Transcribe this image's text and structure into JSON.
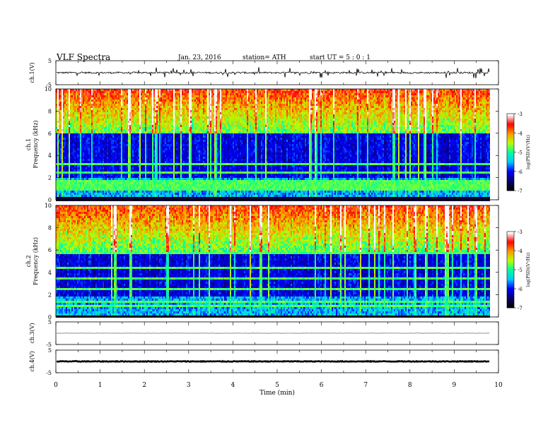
{
  "header": {
    "title": "VLF  Spectra",
    "date": "Jan. 23, 2016",
    "station": "station= ATH",
    "start": "start  UT  =   5  : 0  : 1"
  },
  "chart_data": {
    "type": "heatmap",
    "xlabel": "Time  (min)",
    "xlim": [
      0,
      10
    ],
    "x_ticks": [
      "0",
      "1",
      "2",
      "3",
      "4",
      "5",
      "6",
      "7",
      "8",
      "9",
      "10"
    ],
    "data_end_min": 9.8,
    "panels": [
      {
        "id": "ch1-waveform",
        "ylabel": "ch.1(V)",
        "kind": "waveform",
        "ylim": [
          -5,
          5
        ],
        "y_ticks": [
          "5",
          "-5"
        ],
        "trace": {
          "level": 0,
          "noise": 0.35,
          "spikes": 0.75,
          "color": "#000000"
        }
      },
      {
        "id": "ch1-spectrogram",
        "ylabel": "ch.1\nFrequency  (kHz)",
        "kind": "spectrogram",
        "ylim": [
          0,
          10
        ],
        "y_ticks": [
          "0",
          "2",
          "4",
          "6",
          "8",
          "10"
        ],
        "colorbar": {
          "label": "log(PSD)(V²/Hz)",
          "ticks": [
            "-3",
            "-4",
            "-5",
            "-6",
            "-7"
          ],
          "range": [
            -7,
            -3
          ]
        }
      },
      {
        "id": "ch2-spectrogram",
        "ylabel": "ch.2\nFrequency  (kHz)",
        "kind": "spectrogram",
        "ylim": [
          0,
          10
        ],
        "y_ticks": [
          "0",
          "2",
          "4",
          "6",
          "8",
          "10"
        ],
        "colorbar": {
          "label": "log(PSD)(V²/Hz)",
          "ticks": [
            "-3",
            "-4",
            "-5",
            "-6",
            "-7"
          ],
          "range": [
            -7,
            -3
          ]
        }
      },
      {
        "id": "ch3-waveform",
        "ylabel": "ch.3(V)",
        "kind": "waveform",
        "ylim": [
          -5,
          5
        ],
        "y_ticks": [
          "5",
          "-5"
        ],
        "trace": {
          "level": 0,
          "noise": 0.08,
          "spikes": 0,
          "color": "#777777"
        }
      },
      {
        "id": "ch4-waveform",
        "ylabel": "ch.4(V)",
        "kind": "waveform",
        "ylim": [
          -5,
          5
        ],
        "y_ticks": [
          "5",
          "-5"
        ],
        "trace": {
          "level": 0,
          "noise": 0.15,
          "spikes": 0,
          "color": "#000000"
        }
      }
    ],
    "colormap": [
      "#000000",
      "#0a0070",
      "#0000ff",
      "#00c8ff",
      "#00ff9a",
      "#b6ff00",
      "#ff9900",
      "#ff0000",
      "#ffffff"
    ]
  }
}
